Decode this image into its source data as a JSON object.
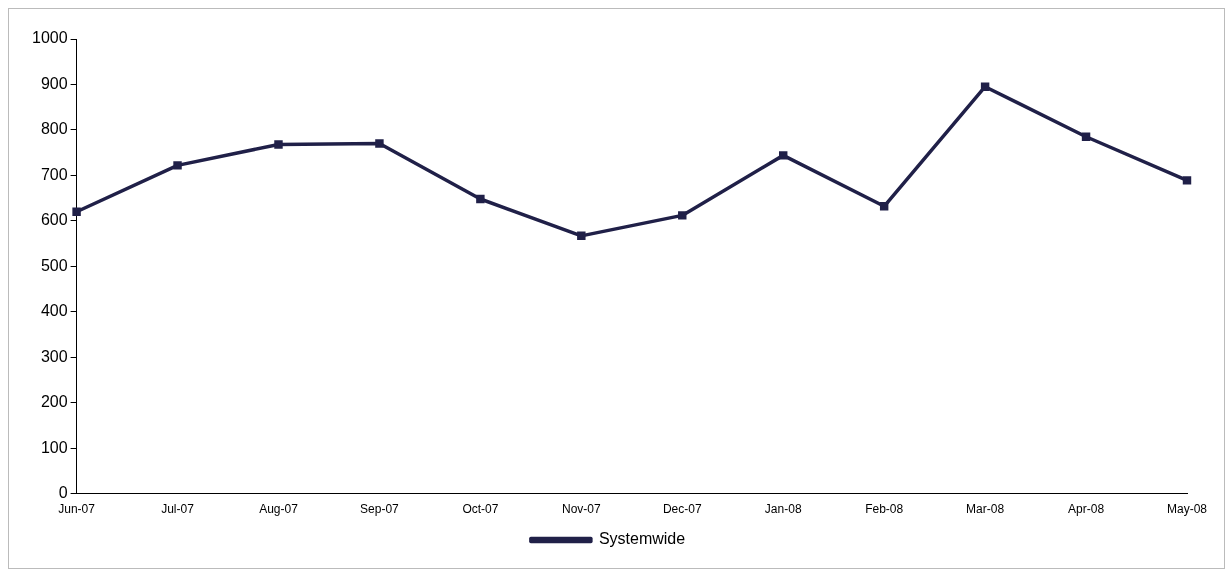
{
  "chart_data": {
    "type": "line",
    "categories": [
      "Jun-07",
      "Jul-07",
      "Aug-07",
      "Sep-07",
      "Oct-07",
      "Nov-07",
      "Dec-07",
      "Jan-08",
      "Feb-08",
      "Mar-08",
      "Apr-08",
      "May-08"
    ],
    "series": [
      {
        "name": "Systemwide",
        "color": "#202048",
        "values": [
          620,
          722,
          768,
          770,
          648,
          567,
          612,
          744,
          632,
          895,
          785,
          689
        ]
      }
    ],
    "ylim": [
      0,
      1000
    ],
    "yticks": [
      0,
      100,
      200,
      300,
      400,
      500,
      600,
      700,
      800,
      900,
      1000
    ],
    "grid": false,
    "legend": "bottom",
    "marker": "square",
    "line_style": "solid"
  }
}
